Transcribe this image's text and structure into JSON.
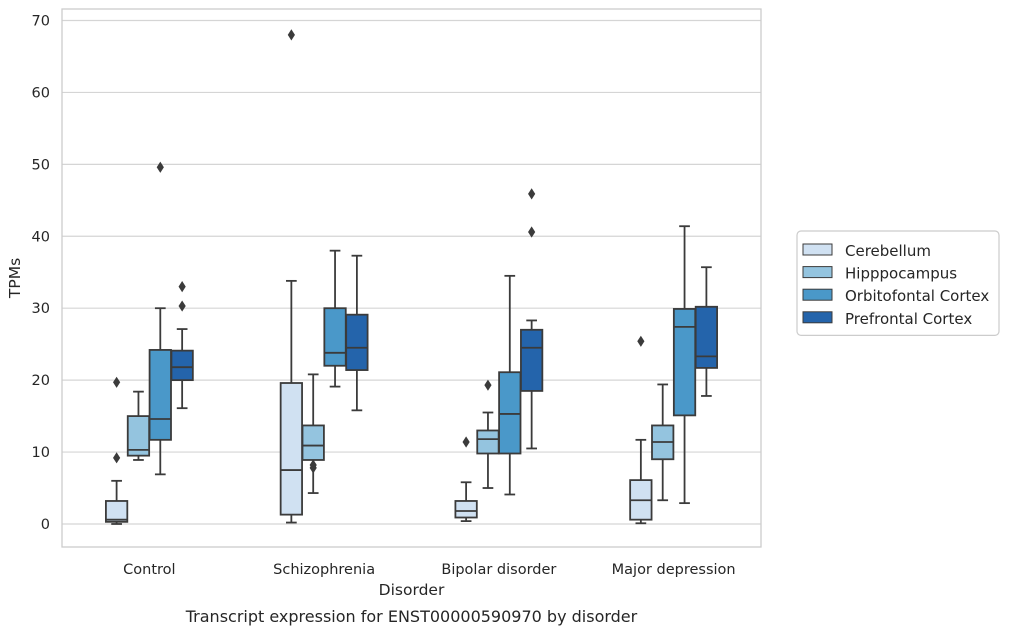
{
  "caption": "Transcript expression for ENST00000590970 by disorder",
  "chart_data": {
    "type": "box",
    "title": "",
    "xlabel": "Disorder",
    "ylabel": "TPMs",
    "ylim": [
      -3.2,
      71.6
    ],
    "yticks": [
      0,
      10,
      20,
      30,
      40,
      50,
      60,
      70
    ],
    "grid": "horizontal",
    "legend_position": "right",
    "categories": [
      "Control",
      "Schizophrenia",
      "Bipolar disorder",
      "Major depression"
    ],
    "series": [
      {
        "name": "Cerebellum",
        "color": "#d0e1f2",
        "boxes": [
          {
            "whislo": 0.0,
            "q1": 0.3,
            "med": 0.6,
            "q3": 3.2,
            "whishi": 6.0,
            "fliers": [
              9.2,
              19.7
            ]
          },
          {
            "whislo": 0.2,
            "q1": 1.3,
            "med": 7.5,
            "q3": 19.6,
            "whishi": 33.8,
            "fliers": [
              68.0
            ]
          },
          {
            "whislo": 0.4,
            "q1": 0.9,
            "med": 1.8,
            "q3": 3.2,
            "whishi": 5.8,
            "fliers": [
              11.4
            ]
          },
          {
            "whislo": 0.1,
            "q1": 0.6,
            "med": 3.3,
            "q3": 6.1,
            "whishi": 11.7,
            "fliers": [
              25.4
            ]
          }
        ]
      },
      {
        "name": "Hipppocampus",
        "color": "#94c4df",
        "boxes": [
          {
            "whislo": 8.9,
            "q1": 9.5,
            "med": 10.3,
            "q3": 15.0,
            "whishi": 18.4,
            "fliers": []
          },
          {
            "whislo": 4.3,
            "q1": 8.9,
            "med": 10.9,
            "q3": 13.7,
            "whishi": 20.8,
            "fliers": [
              7.8,
              8.2
            ]
          },
          {
            "whislo": 5.0,
            "q1": 9.8,
            "med": 11.8,
            "q3": 13.0,
            "whishi": 15.5,
            "fliers": [
              19.3
            ]
          },
          {
            "whislo": 3.3,
            "q1": 9.0,
            "med": 11.4,
            "q3": 13.7,
            "whishi": 19.4,
            "fliers": []
          }
        ]
      },
      {
        "name": "Orbitofontal Cortex",
        "color": "#4a98c9",
        "boxes": [
          {
            "whislo": 6.9,
            "q1": 11.7,
            "med": 14.6,
            "q3": 24.2,
            "whishi": 30.0,
            "fliers": [
              49.6
            ]
          },
          {
            "whislo": 19.1,
            "q1": 22.0,
            "med": 23.8,
            "q3": 30.0,
            "whishi": 38.0,
            "fliers": []
          },
          {
            "whislo": 4.1,
            "q1": 9.8,
            "med": 15.3,
            "q3": 21.1,
            "whishi": 34.5,
            "fliers": []
          },
          {
            "whislo": 2.9,
            "q1": 15.1,
            "med": 27.4,
            "q3": 29.9,
            "whishi": 41.4,
            "fliers": []
          }
        ]
      },
      {
        "name": "Prefrontal Cortex",
        "color": "#2464ab",
        "boxes": [
          {
            "whislo": 16.1,
            "q1": 20.0,
            "med": 21.8,
            "q3": 24.1,
            "whishi": 27.1,
            "fliers": [
              30.3,
              33.0
            ]
          },
          {
            "whislo": 15.8,
            "q1": 21.4,
            "med": 24.5,
            "q3": 29.1,
            "whishi": 37.3,
            "fliers": []
          },
          {
            "whislo": 10.5,
            "q1": 18.5,
            "med": 24.5,
            "q3": 27.0,
            "whishi": 28.3,
            "fliers": [
              40.6,
              45.9
            ]
          },
          {
            "whislo": 17.8,
            "q1": 21.7,
            "med": 23.3,
            "q3": 30.2,
            "whishi": 35.7,
            "fliers": []
          }
        ]
      }
    ]
  }
}
